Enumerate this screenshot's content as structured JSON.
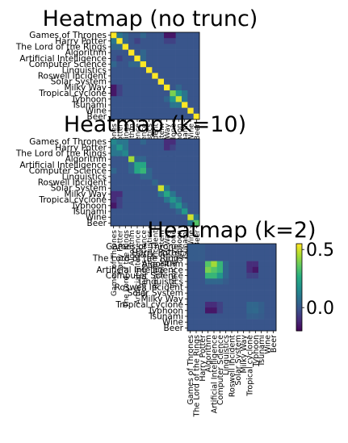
{
  "chart_data": [
    {
      "type": "heatmap",
      "title": "Heatmap (no trunc)",
      "categories": [
        "Games of Thrones",
        "Harry Potter",
        "The Lord of the Rings",
        "Algorithm",
        "Artificial Intelligence",
        "Computer Science",
        "Linguistics",
        "Roswell Incident",
        "Solar System",
        "Milky Way",
        "Tropical cyclone",
        "Typhoon",
        "Tsunami",
        "Wine",
        "Beer"
      ],
      "x_tick_labels": [
        "Games of Thrones",
        "Harry Potter",
        "The Lord of the Rings",
        "Algorithm",
        "Artificial Intelligence",
        "Computer Science",
        "Linguistics",
        "Roswell Incident",
        "Solar System",
        "Milky Way",
        "Tropical cyclone",
        "Typhoon",
        "Tsunami",
        "Wine",
        "Beer"
      ],
      "colormap": "viridis",
      "vlim": [
        -0.2,
        0.55
      ],
      "values": [
        [
          0.55,
          0.1,
          0.05,
          0.0,
          0.0,
          0.05,
          0.0,
          0.0,
          0.0,
          -0.15,
          -0.15,
          0.0,
          0.0,
          0.0,
          0.0
        ],
        [
          0.1,
          0.55,
          0.05,
          0.0,
          -0.05,
          0.0,
          0.0,
          0.0,
          0.0,
          -0.05,
          -0.05,
          0.0,
          0.0,
          0.0,
          0.0
        ],
        [
          0.05,
          0.05,
          0.55,
          0.0,
          0.0,
          0.0,
          0.0,
          0.0,
          0.0,
          0.0,
          0.0,
          0.0,
          0.0,
          0.0,
          0.0
        ],
        [
          0.0,
          0.0,
          0.0,
          0.55,
          0.0,
          0.05,
          0.0,
          0.0,
          0.0,
          0.0,
          0.0,
          0.0,
          0.0,
          0.0,
          0.0
        ],
        [
          0.0,
          -0.05,
          0.0,
          0.0,
          0.55,
          0.05,
          0.0,
          0.0,
          0.0,
          0.0,
          0.0,
          0.0,
          0.0,
          0.0,
          0.0
        ],
        [
          0.05,
          0.0,
          0.0,
          0.05,
          0.05,
          0.55,
          0.0,
          0.0,
          0.0,
          0.0,
          0.0,
          0.0,
          0.0,
          0.0,
          0.0
        ],
        [
          0.0,
          0.0,
          0.0,
          0.0,
          0.0,
          0.0,
          0.55,
          0.0,
          0.0,
          0.0,
          0.0,
          0.0,
          0.0,
          0.0,
          0.0
        ],
        [
          0.0,
          0.0,
          0.0,
          0.0,
          0.0,
          0.0,
          0.0,
          0.55,
          0.0,
          0.0,
          0.0,
          0.0,
          0.0,
          0.0,
          0.0
        ],
        [
          0.0,
          0.0,
          0.0,
          0.0,
          0.0,
          0.0,
          0.0,
          0.0,
          0.55,
          0.0,
          0.0,
          0.0,
          0.0,
          0.0,
          0.0
        ],
        [
          -0.15,
          -0.05,
          0.0,
          0.0,
          0.0,
          0.0,
          0.0,
          0.0,
          0.0,
          0.55,
          0.0,
          0.05,
          0.0,
          0.0,
          0.0
        ],
        [
          -0.15,
          -0.05,
          0.0,
          0.0,
          0.0,
          0.0,
          0.0,
          0.0,
          0.0,
          0.0,
          0.4,
          0.2,
          0.1,
          0.0,
          0.0
        ],
        [
          0.0,
          0.0,
          0.0,
          0.0,
          0.0,
          0.0,
          0.0,
          0.0,
          0.0,
          0.05,
          0.2,
          0.5,
          0.1,
          0.0,
          0.0
        ],
        [
          0.0,
          0.0,
          0.0,
          0.0,
          0.0,
          0.0,
          0.0,
          0.0,
          0.0,
          0.0,
          0.1,
          0.1,
          0.55,
          0.0,
          0.0
        ],
        [
          0.0,
          0.0,
          0.0,
          0.0,
          0.0,
          0.0,
          0.0,
          0.0,
          0.0,
          0.0,
          0.0,
          0.0,
          0.0,
          0.55,
          0.0
        ],
        [
          0.0,
          0.0,
          0.0,
          0.0,
          0.0,
          0.0,
          0.0,
          0.0,
          0.0,
          0.0,
          0.0,
          0.0,
          0.0,
          0.0,
          0.55
        ]
      ]
    },
    {
      "type": "heatmap",
      "title": "Heatmap (k=10)",
      "categories": [
        "Games of Thrones",
        "Harry Potter",
        "The Lord of the Rings",
        "Algorithm",
        "Artificial Intelligence",
        "Computer Science",
        "Linguistics",
        "Roswell Incident",
        "Solar System",
        "Milky Way",
        "Tropical cyclone",
        "Typhoon",
        "Tsunami",
        "Wine",
        "Beer"
      ],
      "x_tick_labels": [
        "Games of Thrones",
        "Harry Potter",
        "The Lord of the Rings",
        "Algorithm",
        "Artificial Intelligence",
        "Computer Science",
        "Linguistics",
        "Roswell Incident",
        "Solar System",
        "Milky Way",
        "Tropical cyclone",
        "Typhoon",
        "Tsunami",
        "Wine",
        "Beer"
      ],
      "colormap": "viridis",
      "vlim": [
        -0.2,
        0.55
      ],
      "values": [
        [
          0.15,
          0.1,
          0.1,
          0.0,
          0.0,
          0.05,
          0.0,
          0.0,
          0.0,
          -0.1,
          -0.1,
          0.0,
          0.0,
          0.0,
          0.0
        ],
        [
          0.1,
          0.2,
          0.1,
          0.0,
          0.0,
          0.0,
          0.0,
          0.0,
          0.0,
          -0.1,
          -0.05,
          0.0,
          0.0,
          0.0,
          0.0
        ],
        [
          0.1,
          0.1,
          0.15,
          0.0,
          0.0,
          0.0,
          0.0,
          0.0,
          0.0,
          0.0,
          0.0,
          0.0,
          0.0,
          0.0,
          0.0
        ],
        [
          0.0,
          0.0,
          0.0,
          0.45,
          0.05,
          0.05,
          0.0,
          0.0,
          0.0,
          0.0,
          0.0,
          0.0,
          0.0,
          0.0,
          0.0
        ],
        [
          0.0,
          0.0,
          0.0,
          0.05,
          0.25,
          0.25,
          0.0,
          0.0,
          0.0,
          0.0,
          0.0,
          0.0,
          0.0,
          0.0,
          0.0
        ],
        [
          0.05,
          0.0,
          0.0,
          0.05,
          0.25,
          0.3,
          0.05,
          0.0,
          0.0,
          0.0,
          0.0,
          0.0,
          0.0,
          0.0,
          0.0
        ],
        [
          0.0,
          0.0,
          0.0,
          0.0,
          0.0,
          0.05,
          0.05,
          0.0,
          0.0,
          0.0,
          0.0,
          0.0,
          0.0,
          0.0,
          0.0
        ],
        [
          0.0,
          0.0,
          0.0,
          0.0,
          0.0,
          0.0,
          0.0,
          0.05,
          0.0,
          0.0,
          0.0,
          0.0,
          0.0,
          0.0,
          0.0
        ],
        [
          0.0,
          0.0,
          0.0,
          0.0,
          0.0,
          0.0,
          0.0,
          0.0,
          0.5,
          0.1,
          0.0,
          0.0,
          0.0,
          0.0,
          0.0
        ],
        [
          -0.1,
          -0.1,
          0.0,
          0.0,
          0.0,
          0.0,
          0.0,
          0.0,
          0.1,
          0.25,
          0.1,
          0.0,
          0.0,
          0.0,
          0.0
        ],
        [
          -0.1,
          -0.05,
          0.0,
          0.0,
          0.0,
          0.0,
          0.0,
          0.0,
          0.0,
          0.1,
          0.2,
          0.1,
          0.0,
          0.0,
          0.0
        ],
        [
          -0.15,
          -0.05,
          0.0,
          0.0,
          0.0,
          0.0,
          0.0,
          0.0,
          0.0,
          0.0,
          0.1,
          0.2,
          0.05,
          0.0,
          0.0
        ],
        [
          0.0,
          0.0,
          0.0,
          0.0,
          0.0,
          0.0,
          0.0,
          0.0,
          0.0,
          0.0,
          0.0,
          0.05,
          0.2,
          0.0,
          0.0
        ],
        [
          0.0,
          0.0,
          0.0,
          0.0,
          0.0,
          0.0,
          0.0,
          0.0,
          0.0,
          0.0,
          0.0,
          0.0,
          0.0,
          0.5,
          0.1
        ],
        [
          0.0,
          0.0,
          0.0,
          0.0,
          0.0,
          0.0,
          0.0,
          0.0,
          0.0,
          0.0,
          0.0,
          0.0,
          0.0,
          0.1,
          0.35
        ]
      ]
    },
    {
      "type": "heatmap",
      "title": "Heatmap (k=2)",
      "categories": [
        "Games of Thrones",
        "Harry Potter",
        "The Lord of the Rings",
        "Algorithm",
        "Artificial Intelligence",
        "Computer Science",
        "Linguistics",
        "Roswell Incident",
        "Solar System",
        "Milky Way",
        "Tropical cyclone",
        "Typhoon",
        "Tsunami",
        "Wine",
        "Beer"
      ],
      "x_tick_labels": [
        "Games of Thrones",
        "The Lord of the Rings",
        "Harry Potter",
        "Algorithm",
        "Artificial Intelligence",
        "Computer Science",
        "Linguistics",
        "Roswell Incident",
        "Solar System",
        "Milky Way",
        "Tropical cyclone",
        "Typhoon",
        "Tsunami",
        "Wine",
        "Beer"
      ],
      "colormap": "viridis",
      "vlim": [
        -0.2,
        0.55
      ],
      "colorbar": {
        "ticks": [
          0.5,
          0.0
        ],
        "tick_labels": [
          "0.5",
          "0.0"
        ]
      },
      "values": [
        [
          0.02,
          0.02,
          0.02,
          0.0,
          0.0,
          0.0,
          0.0,
          0.0,
          0.0,
          0.0,
          0.0,
          0.0,
          0.0,
          0.0,
          0.0
        ],
        [
          0.02,
          0.02,
          0.02,
          0.0,
          0.0,
          0.0,
          0.0,
          0.0,
          0.0,
          0.0,
          0.0,
          0.0,
          0.0,
          0.0,
          0.0
        ],
        [
          0.02,
          0.02,
          0.02,
          0.0,
          0.0,
          0.0,
          0.0,
          0.0,
          0.0,
          0.0,
          0.0,
          0.0,
          0.0,
          0.0,
          0.0
        ],
        [
          0.0,
          0.0,
          0.0,
          0.35,
          0.45,
          0.3,
          0.05,
          0.0,
          0.0,
          0.0,
          -0.1,
          -0.1,
          0.0,
          0.0,
          0.0
        ],
        [
          0.0,
          0.0,
          0.0,
          0.4,
          0.35,
          0.3,
          0.05,
          0.0,
          0.0,
          0.0,
          -0.1,
          -0.15,
          0.0,
          0.0,
          0.0
        ],
        [
          0.0,
          0.0,
          0.0,
          0.3,
          0.3,
          0.2,
          0.05,
          0.0,
          0.0,
          0.0,
          -0.05,
          -0.05,
          0.0,
          0.0,
          0.0
        ],
        [
          0.0,
          0.0,
          0.0,
          0.05,
          0.05,
          0.05,
          0.02,
          0.0,
          0.0,
          0.0,
          0.0,
          0.0,
          0.0,
          0.0,
          0.0
        ],
        [
          0.0,
          0.0,
          0.0,
          0.0,
          0.0,
          0.0,
          0.0,
          0.0,
          0.0,
          0.0,
          0.0,
          0.0,
          0.0,
          0.0,
          0.0
        ],
        [
          0.0,
          0.0,
          0.0,
          0.0,
          0.0,
          0.0,
          0.0,
          0.0,
          0.0,
          0.0,
          0.0,
          0.0,
          0.0,
          0.0,
          0.0
        ],
        [
          0.0,
          0.0,
          0.0,
          0.0,
          0.0,
          0.0,
          0.0,
          0.0,
          0.0,
          0.0,
          0.0,
          0.0,
          0.0,
          0.0,
          0.0
        ],
        [
          0.0,
          0.0,
          0.0,
          -0.1,
          -0.1,
          -0.05,
          0.0,
          0.0,
          0.0,
          0.0,
          0.05,
          0.05,
          0.03,
          0.0,
          0.0
        ],
        [
          0.0,
          0.0,
          0.0,
          -0.15,
          -0.15,
          -0.05,
          0.0,
          0.0,
          0.0,
          0.0,
          0.05,
          0.06,
          0.03,
          0.0,
          0.0
        ],
        [
          0.0,
          0.0,
          0.0,
          0.0,
          0.0,
          0.0,
          0.0,
          0.0,
          0.0,
          0.0,
          0.03,
          0.03,
          0.02,
          0.0,
          0.0
        ],
        [
          0.0,
          0.0,
          0.0,
          0.0,
          0.0,
          0.0,
          0.0,
          0.0,
          0.0,
          0.0,
          0.0,
          0.0,
          0.0,
          0.0,
          0.0
        ],
        [
          0.0,
          0.0,
          0.0,
          0.0,
          0.0,
          0.0,
          0.0,
          0.0,
          0.0,
          0.0,
          0.0,
          0.0,
          0.0,
          0.0,
          0.0
        ]
      ]
    }
  ]
}
